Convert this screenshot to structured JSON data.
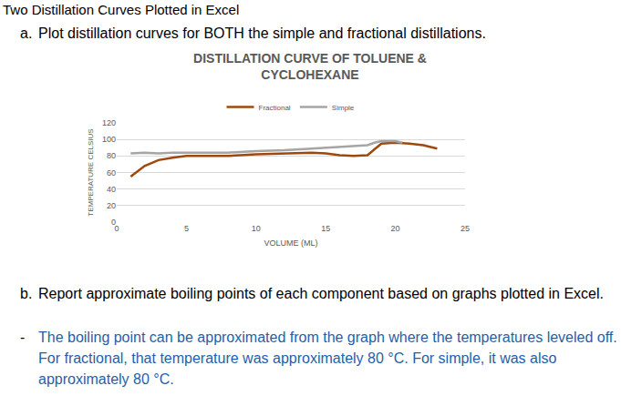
{
  "header": {
    "title": "Two Distillation Curves Plotted in Excel"
  },
  "items": [
    {
      "label": "a.",
      "text": "Plot distillation curves for BOTH the simple and fractional distillations."
    },
    {
      "label": "b.",
      "text": "Report approximate boiling points of each component based on graphs plotted in Excel."
    }
  ],
  "answer": {
    "bullet": "-",
    "text": "The boiling point can be approximated from the graph where the temperatures leveled off. For fractional, that temperature was approximately 80 °C. For simple, it was also approximately 80 °C."
  },
  "chart_data": {
    "type": "line",
    "title": "DISTILLATION CURVE OF TOLUENE &\nCYCLOHEXANE",
    "x_label": "VOLUME (ML)",
    "y_label": "TEMPERATURE CELSIUS",
    "xlim": [
      0,
      25
    ],
    "xticks": [
      0,
      5,
      10,
      15,
      20,
      25
    ],
    "ylim": [
      0,
      120
    ],
    "yticks": [
      0,
      20,
      40,
      60,
      80,
      100,
      120
    ],
    "grid": "y",
    "legend": "top",
    "series": [
      {
        "name": "Fractional",
        "color": "#9E480E",
        "x": [
          1,
          2,
          3,
          4,
          5,
          6,
          8,
          10,
          12,
          14,
          15,
          16,
          17,
          18,
          18.5,
          19,
          20,
          21,
          22,
          23
        ],
        "values": [
          55,
          68,
          75,
          78,
          80,
          80,
          80,
          82,
          83,
          84,
          83,
          81,
          80,
          81,
          88,
          95,
          96,
          95,
          93,
          89
        ]
      },
      {
        "name": "Simple",
        "color": "#A5A5A5",
        "x": [
          1,
          2,
          3,
          4,
          5,
          8,
          10,
          12,
          14,
          16,
          18,
          18.5,
          19,
          20,
          20.5
        ],
        "values": [
          83,
          84,
          83,
          84,
          84,
          84,
          86,
          87,
          89,
          91,
          93,
          96,
          98,
          98,
          96
        ]
      }
    ]
  }
}
